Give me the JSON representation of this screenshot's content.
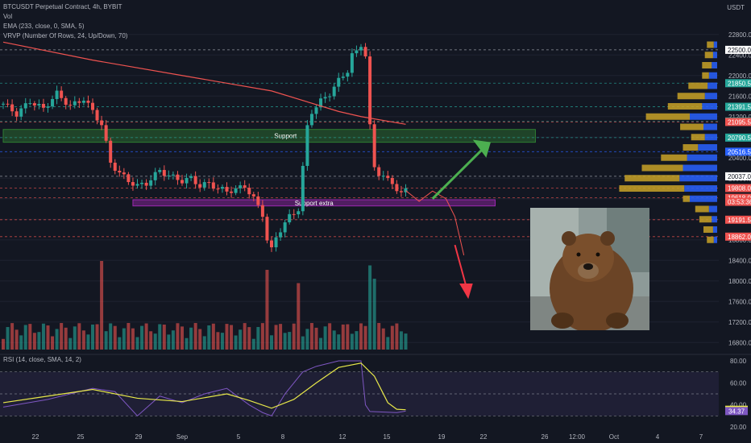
{
  "legend": {
    "symbol": "BTCUSDT Perpetual Contract, 4h, BYBIT",
    "vol": "Vol",
    "ema": "EMA (233, close, 0, SMA, 5)",
    "vrvp": "VRVP (Number Of Rows, 24, Up/Down, 70)",
    "rsi": "RSI (14, close, SMA, 14, 2)"
  },
  "colors": {
    "up": "#26a69a",
    "down": "#ef5350",
    "ema": "#ef5350",
    "rsi": "#7e57c2",
    "rsi_ma": "#e8e84a",
    "support_zone": "#2e7d32",
    "support_extra_zone": "#9c27b0",
    "arrow_up": "#4caf50",
    "arrow_down": "#f23645",
    "vp_up": "#2962ff",
    "vp_down": "#c9a227"
  },
  "axis": {
    "currency": "USDT"
  },
  "chart_data": {
    "type": "candlestick",
    "symbol": "BTCUSDT",
    "timeframe": "4h",
    "ylim": [
      16600,
      23000
    ],
    "y_ticks": [
      22800,
      22400,
      22000,
      21600,
      21200,
      20800,
      20400,
      20000,
      19600,
      19200,
      18800,
      18400,
      18000,
      17600,
      17200,
      16800
    ],
    "x_ticks": [
      "22",
      "25",
      "29",
      "Sep",
      "5",
      "8",
      "12",
      "15",
      "19",
      "22",
      "26",
      "12:00",
      "Oct",
      "4",
      "7"
    ],
    "close_path": [
      [
        0,
        21450
      ],
      [
        3,
        21250
      ],
      [
        6,
        21500
      ],
      [
        9,
        21350
      ],
      [
        12,
        21650
      ],
      [
        15,
        21400
      ],
      [
        18,
        21550
      ],
      [
        20,
        21300
      ],
      [
        22,
        21050
      ],
      [
        24,
        20300
      ],
      [
        26,
        20100
      ],
      [
        28,
        19950
      ],
      [
        30,
        19850
      ],
      [
        32,
        19900
      ],
      [
        35,
        20150
      ],
      [
        37,
        20050
      ],
      [
        40,
        19950
      ],
      [
        42,
        20000
      ],
      [
        44,
        19850
      ],
      [
        46,
        19900
      ],
      [
        48,
        19800
      ],
      [
        50,
        19750
      ],
      [
        52,
        19780
      ],
      [
        54,
        19850
      ],
      [
        56,
        19600
      ],
      [
        58,
        19300
      ],
      [
        59,
        18800
      ],
      [
        60,
        18600
      ],
      [
        61,
        18850
      ],
      [
        62,
        19000
      ],
      [
        64,
        19250
      ],
      [
        66,
        19400
      ],
      [
        67,
        20200
      ],
      [
        68,
        21000
      ],
      [
        69,
        21300
      ],
      [
        71,
        21500
      ],
      [
        73,
        21650
      ],
      [
        75,
        21900
      ],
      [
        77,
        22100
      ],
      [
        78,
        22400
      ],
      [
        79,
        22450
      ],
      [
        80,
        22600
      ],
      [
        81,
        22400
      ],
      [
        82,
        21000
      ],
      [
        83,
        20200
      ],
      [
        84,
        20100
      ],
      [
        85,
        20050
      ],
      [
        86,
        19950
      ],
      [
        87,
        19900
      ],
      [
        88,
        19800
      ],
      [
        89,
        19700
      ],
      [
        90,
        19760
      ]
    ],
    "ema233": [
      [
        0,
        22650
      ],
      [
        20,
        22300
      ],
      [
        40,
        22000
      ],
      [
        60,
        21700
      ],
      [
        75,
        21300
      ],
      [
        80,
        21200
      ],
      [
        90,
        21050
      ]
    ],
    "volume_spikes": [
      [
        22,
        1.0
      ],
      [
        59,
        0.9
      ],
      [
        66,
        0.75
      ],
      [
        82,
        0.95
      ],
      [
        83,
        0.8
      ]
    ],
    "projection_path": [
      [
        90,
        19760
      ],
      [
        93,
        19550
      ],
      [
        96,
        19750
      ],
      [
        99,
        19600
      ],
      [
        101,
        19250
      ],
      [
        103,
        18500
      ]
    ],
    "rsi": {
      "range": [
        20,
        80
      ],
      "levels": [
        70,
        50,
        30
      ],
      "last_rsi": 34.37,
      "last_ma": 35.58,
      "values": [
        [
          0,
          38
        ],
        [
          10,
          45
        ],
        [
          20,
          55
        ],
        [
          25,
          52
        ],
        [
          30,
          30
        ],
        [
          35,
          48
        ],
        [
          40,
          42
        ],
        [
          45,
          50
        ],
        [
          50,
          55
        ],
        [
          55,
          40
        ],
        [
          58,
          33
        ],
        [
          60,
          30
        ],
        [
          63,
          50
        ],
        [
          67,
          70
        ],
        [
          70,
          75
        ],
        [
          75,
          80
        ],
        [
          80,
          80
        ],
        [
          81,
          40
        ],
        [
          82,
          34
        ],
        [
          88,
          33
        ],
        [
          90,
          34.37
        ]
      ],
      "ma": [
        [
          0,
          42
        ],
        [
          10,
          48
        ],
        [
          20,
          54
        ],
        [
          30,
          46
        ],
        [
          40,
          43
        ],
        [
          50,
          50
        ],
        [
          55,
          44
        ],
        [
          60,
          37
        ],
        [
          65,
          45
        ],
        [
          70,
          60
        ],
        [
          75,
          74
        ],
        [
          80,
          78
        ],
        [
          83,
          66
        ],
        [
          86,
          42
        ],
        [
          88,
          36
        ],
        [
          90,
          35.58
        ]
      ]
    },
    "price_tags": [
      {
        "label": "22500.0",
        "value": 22500,
        "kind": "white"
      },
      {
        "label": "21850.5",
        "value": 21850.5,
        "kind": "green"
      },
      {
        "label": "21391.5",
        "value": 21391.5,
        "kind": "green"
      },
      {
        "label": "21105.5",
        "value": 21105.5,
        "kind": "green"
      },
      {
        "label": "21095.5",
        "value": 21095.5,
        "kind": "red"
      },
      {
        "label": "20790.5",
        "value": 20790.5,
        "kind": "green"
      },
      {
        "label": "20516.5",
        "value": 20516.5,
        "kind": "blue"
      },
      {
        "label": "20037.0",
        "value": 20037,
        "kind": "white"
      },
      {
        "label": "19808.0",
        "value": 19808,
        "kind": "red"
      },
      {
        "label": "19618.0",
        "value": 19618,
        "kind": "red"
      },
      {
        "label": "03:53:36",
        "value": 19540,
        "kind": "red"
      },
      {
        "label": "19191.5",
        "value": 19191.5,
        "kind": "red"
      },
      {
        "label": "18862.0",
        "value": 18862,
        "kind": "red"
      }
    ],
    "zones": [
      {
        "label": "Support",
        "y_top": 20950,
        "y_bottom": 20700,
        "bar_start": 0,
        "bar_end": 119,
        "kind": "green"
      },
      {
        "label": "Support extra",
        "y_top": 19580,
        "y_bottom": 19460,
        "bar_start": 29,
        "bar_end": 110,
        "kind": "purple"
      }
    ],
    "volume_profile": [
      {
        "price": 22600,
        "up": 5,
        "down": 10
      },
      {
        "price": 22400,
        "up": 6,
        "down": 12
      },
      {
        "price": 22200,
        "up": 8,
        "down": 14
      },
      {
        "price": 22000,
        "up": 12,
        "down": 10
      },
      {
        "price": 21800,
        "up": 14,
        "down": 28
      },
      {
        "price": 21600,
        "up": 18,
        "down": 40
      },
      {
        "price": 21400,
        "up": 22,
        "down": 50
      },
      {
        "price": 21200,
        "up": 40,
        "down": 64
      },
      {
        "price": 21000,
        "up": 20,
        "down": 34
      },
      {
        "price": 20800,
        "up": 18,
        "down": 20
      },
      {
        "price": 20600,
        "up": 28,
        "down": 22
      },
      {
        "price": 20400,
        "up": 44,
        "down": 38
      },
      {
        "price": 20200,
        "up": 50,
        "down": 60
      },
      {
        "price": 20000,
        "up": 55,
        "down": 80
      },
      {
        "price": 19800,
        "up": 48,
        "down": 95
      },
      {
        "price": 19600,
        "up": 40,
        "down": 10
      },
      {
        "price": 19400,
        "up": 12,
        "down": 20
      },
      {
        "price": 19200,
        "up": 8,
        "down": 18
      },
      {
        "price": 19000,
        "up": 6,
        "down": 14
      },
      {
        "price": 18800,
        "up": 5,
        "down": 10
      }
    ]
  }
}
